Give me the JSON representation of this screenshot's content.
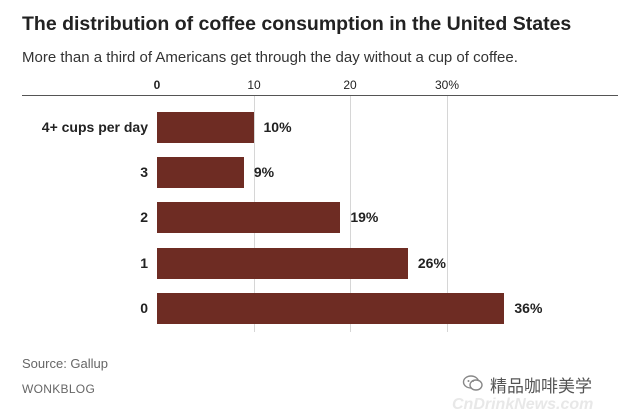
{
  "header": {
    "title": "The distribution of coffee consumption in the United States",
    "subtitle": "More than a third of Americans get through the day without a cup of coffee."
  },
  "axis": {
    "ticks": [
      "0",
      "10",
      "20",
      "30%"
    ]
  },
  "chart_data": {
    "type": "bar",
    "orientation": "horizontal",
    "categories": [
      "4+ cups per day",
      "3",
      "2",
      "1",
      "0"
    ],
    "values": [
      10,
      9,
      19,
      26,
      36
    ],
    "value_labels": [
      "10%",
      "9%",
      "19%",
      "26%",
      "36%"
    ],
    "xlim": [
      0,
      36
    ],
    "ticks": [
      0,
      10,
      20,
      30
    ],
    "grid": true,
    "bar_color": "#6e2c23"
  },
  "footer": {
    "source": "Source: Gallup",
    "brand": "WONKBLOG"
  },
  "watermark": {
    "text": "精品咖啡美学",
    "url": "CnDrinkNews.com"
  }
}
